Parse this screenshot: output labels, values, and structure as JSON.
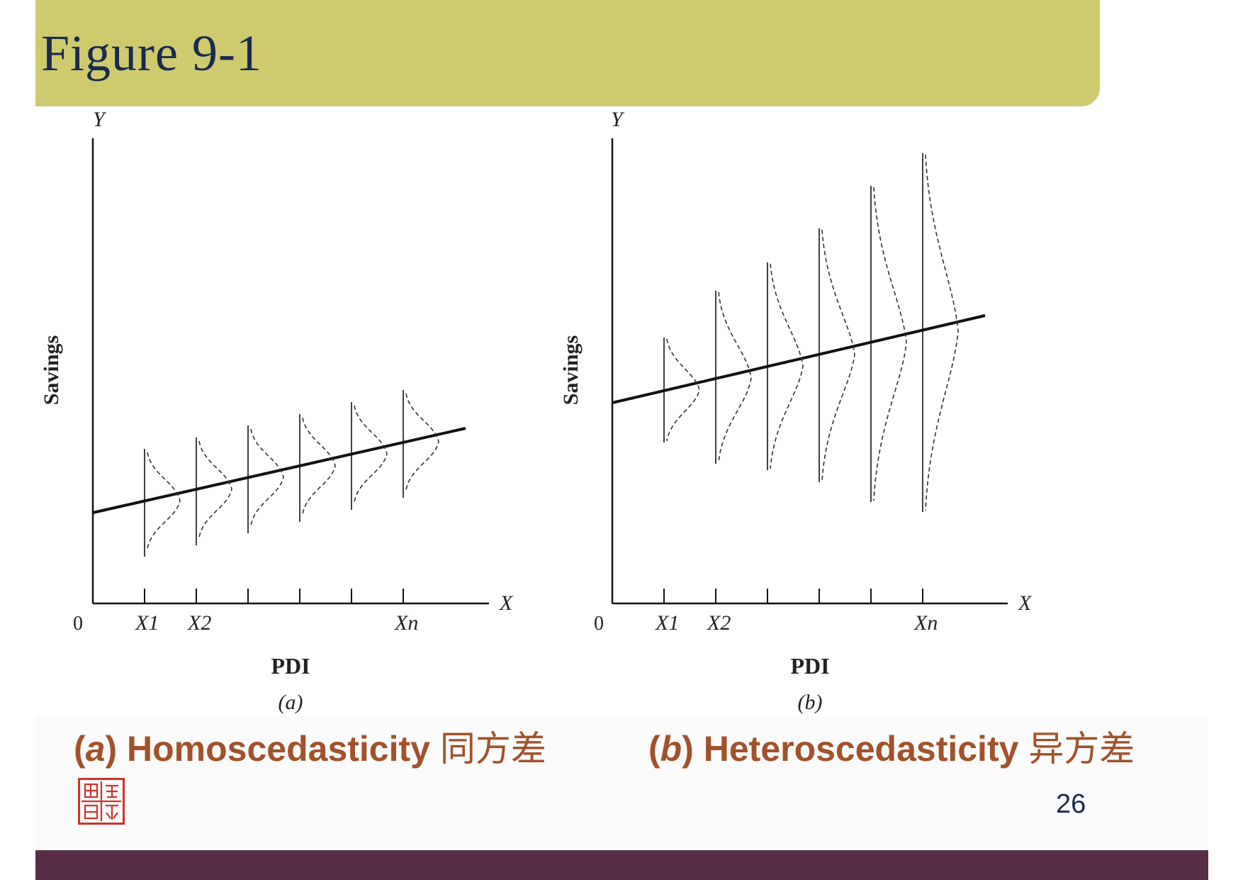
{
  "slide": {
    "title": "Figure 9-1",
    "page_number": "26",
    "title_band_color": "#cfca6e",
    "bottom_bar_color": "#5a2d47",
    "caption_color": "#a1522a"
  },
  "panels": [
    {
      "y_axis_letter": "Y",
      "x_axis_letter": "X",
      "origin_label": "0",
      "y_axis_title": "Savings",
      "x_axis_title": "PDI",
      "panel_label": "(a)",
      "tick_labels": [
        "X1",
        "X2",
        "Xn"
      ],
      "variance": "constant"
    },
    {
      "y_axis_letter": "Y",
      "x_axis_letter": "X",
      "origin_label": "0",
      "y_axis_title": "Savings",
      "x_axis_title": "PDI",
      "panel_label": "(b)",
      "tick_labels": [
        "X1",
        "X2",
        "Xn"
      ],
      "variance": "increasing"
    }
  ],
  "captions": {
    "a_letter": "a",
    "a_text": "Homoscedasticity",
    "a_cn": "同方差",
    "b_letter": "b",
    "b_text": "Heteroscedasticity",
    "b_cn": "异方差"
  },
  "icons": {
    "seal": "university-seal-icon"
  }
}
